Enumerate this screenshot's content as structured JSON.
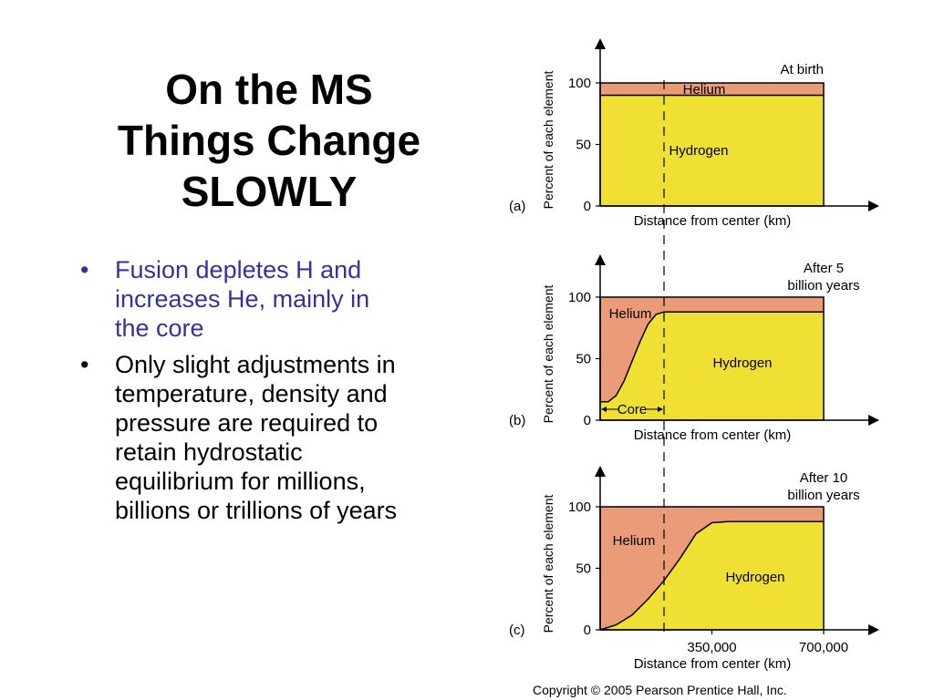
{
  "slide": {
    "title_lines": [
      "On the MS",
      "Things Change",
      "SLOWLY"
    ],
    "bullets": [
      {
        "text": "Fusion depletes H and increases He, mainly in the core",
        "color": "#33339a"
      },
      {
        "text": "Only slight adjustments in temperature, density and pressure are required to retain hydrostatic equilibrium for millions, billions or trillions of years",
        "color": "#000000"
      }
    ],
    "copyright": "Copyright © 2005 Pearson Prentice Hall, Inc."
  },
  "colors": {
    "hydrogen": "#f0e033",
    "helium": "#ea9b77",
    "edge": "#000000"
  },
  "chart_data": [
    {
      "type": "area",
      "panel_label": "(a)",
      "title": "At birth",
      "xlabel": "Distance from center (km)",
      "ylabel": "Percent of each element",
      "yticks": [
        0,
        50,
        100
      ],
      "ylim": [
        0,
        100
      ],
      "xlim": [
        0,
        700000
      ],
      "x": [
        0,
        700000
      ],
      "series": [
        {
          "name": "Hydrogen",
          "values": [
            90,
            90
          ]
        },
        {
          "name": "Helium",
          "values": [
            10,
            10
          ]
        }
      ],
      "core_boundary_x": 200000
    },
    {
      "type": "area",
      "panel_label": "(b)",
      "title_lines": [
        "After 5",
        "billion years"
      ],
      "xlabel": "Distance from center (km)",
      "ylabel": "Percent of each element",
      "yticks": [
        0,
        50,
        100
      ],
      "ylim": [
        0,
        100
      ],
      "xlim": [
        0,
        700000
      ],
      "x": [
        0,
        25000,
        50000,
        75000,
        100000,
        125000,
        150000,
        175000,
        200000,
        700000
      ],
      "series": [
        {
          "name": "Hydrogen",
          "values": [
            15,
            15,
            20,
            32,
            48,
            64,
            78,
            86,
            88,
            88
          ]
        },
        {
          "name": "Helium",
          "values": [
            85,
            85,
            80,
            68,
            52,
            36,
            22,
            14,
            12,
            12
          ]
        }
      ],
      "annotation": "Core",
      "core_boundary_x": 200000
    },
    {
      "type": "area",
      "panel_label": "(c)",
      "title_lines": [
        "After 10",
        "billion years"
      ],
      "xlabel": "Distance from center (km)",
      "ylabel": "Percent of each element",
      "yticks": [
        0,
        50,
        100
      ],
      "xticks": [
        350000,
        700000
      ],
      "xtick_labels": [
        "350,000",
        "700,000"
      ],
      "ylim": [
        0,
        100
      ],
      "xlim": [
        0,
        700000
      ],
      "x": [
        0,
        50000,
        100000,
        150000,
        200000,
        250000,
        300000,
        350000,
        400000,
        700000
      ],
      "series": [
        {
          "name": "Hydrogen",
          "values": [
            0,
            4,
            12,
            25,
            40,
            58,
            78,
            87,
            88,
            88
          ]
        },
        {
          "name": "Helium",
          "values": [
            100,
            96,
            88,
            75,
            60,
            42,
            22,
            13,
            12,
            12
          ]
        }
      ],
      "core_boundary_x": 200000
    }
  ]
}
